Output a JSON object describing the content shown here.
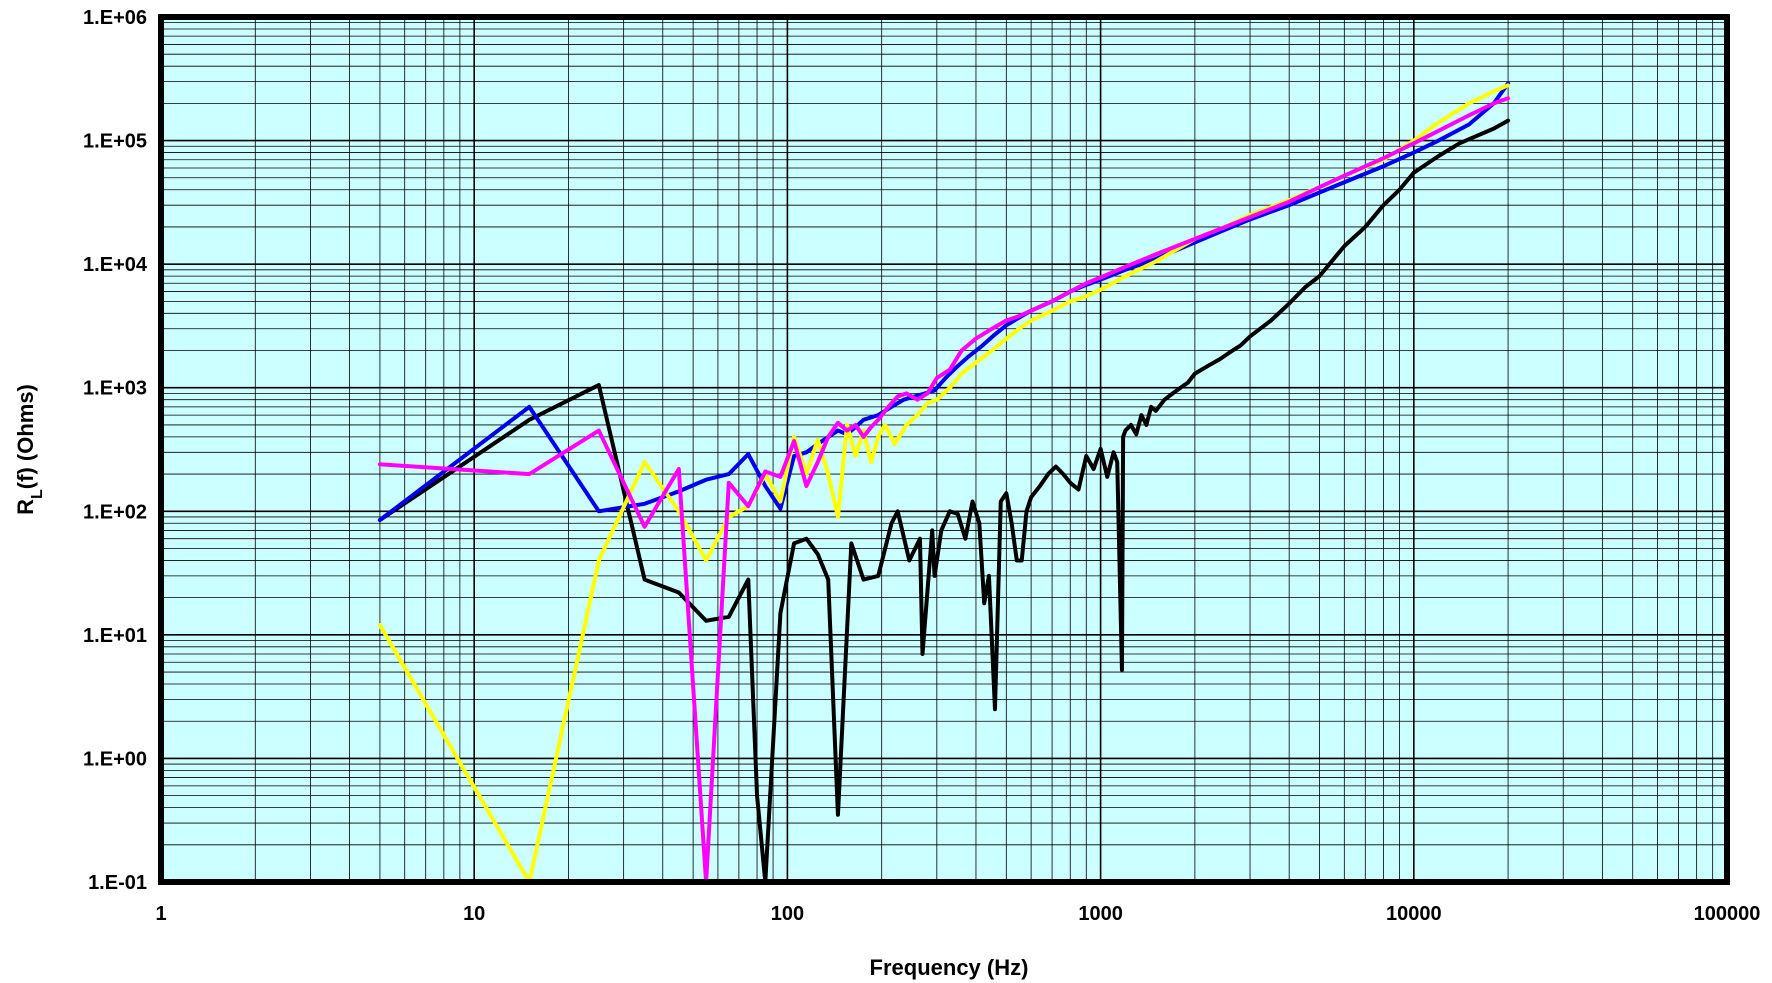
{
  "chart_data": {
    "type": "line",
    "xscale": "log",
    "yscale": "log",
    "xlim": [
      1,
      100000
    ],
    "ylim": [
      0.1,
      1000000
    ],
    "x_ticks": [
      {
        "value": 1,
        "label": "1"
      },
      {
        "value": 10,
        "label": "10"
      },
      {
        "value": 100,
        "label": "100"
      },
      {
        "value": 1000,
        "label": "1000"
      },
      {
        "value": 10000,
        "label": "10000"
      },
      {
        "value": 100000,
        "label": "100000"
      }
    ],
    "y_ticks": [
      {
        "value": 0.1,
        "label": "1.E-01"
      },
      {
        "value": 1,
        "label": "1.E+00"
      },
      {
        "value": 10,
        "label": "1.E+01"
      },
      {
        "value": 100,
        "label": "1.E+02"
      },
      {
        "value": 1000,
        "label": "1.E+03"
      },
      {
        "value": 10000,
        "label": "1.E+04"
      },
      {
        "value": 100000,
        "label": "1.E+05"
      },
      {
        "value": 1000000,
        "label": "1.E+06"
      }
    ],
    "xlabel": "Frequency (Hz)",
    "ylabel_main": "R",
    "ylabel_sub": "L",
    "ylabel_rest": "(f) (Ohms)",
    "grid": true,
    "plot_background": "#ccffff",
    "series": [
      {
        "color": "#000000",
        "x": [
          5,
          15,
          25,
          35,
          45,
          55,
          65,
          75,
          80,
          85,
          95,
          105,
          115,
          125,
          135,
          145,
          160,
          175,
          195,
          215,
          225,
          245,
          265,
          270,
          290,
          295,
          310,
          330,
          350,
          370,
          390,
          410,
          425,
          440,
          460,
          480,
          500,
          520,
          540,
          560,
          580,
          600,
          640,
          680,
          720,
          760,
          800,
          850,
          900,
          950,
          1000,
          1050,
          1100,
          1130,
          1170,
          1180,
          1200,
          1250,
          1300,
          1350,
          1400,
          1450,
          1500,
          1600,
          1700,
          1800,
          1900,
          2000,
          2200,
          2400,
          2600,
          2800,
          3000,
          3500,
          4000,
          4500,
          5000,
          6000,
          7000,
          8000,
          9000,
          10000,
          12000,
          14000,
          16000,
          18000,
          20000
        ],
        "y": [
          85,
          550,
          1050,
          28,
          22,
          13,
          14,
          28,
          0.5,
          0.1,
          15,
          55,
          60,
          45,
          28,
          0.35,
          55,
          28,
          30,
          80,
          100,
          40,
          60,
          7,
          70,
          30,
          70,
          100,
          95,
          60,
          120,
          80,
          18,
          30,
          2.5,
          120,
          140,
          80,
          40,
          40,
          100,
          130,
          160,
          200,
          230,
          200,
          170,
          150,
          280,
          220,
          320,
          190,
          300,
          250,
          5.2,
          400,
          450,
          500,
          420,
          600,
          500,
          700,
          650,
          800,
          900,
          1000,
          1100,
          1300,
          1500,
          1700,
          1950,
          2200,
          2600,
          3500,
          4800,
          6500,
          8000,
          14000,
          20000,
          30000,
          40000,
          55000,
          75000,
          95000,
          110000,
          125000,
          145000
        ]
      },
      {
        "color": "#0000ee",
        "x": [
          5,
          15,
          25,
          35,
          45,
          55,
          65,
          75,
          85,
          95,
          105,
          115,
          125,
          135,
          145,
          155,
          165,
          175,
          195,
          215,
          235,
          255,
          275,
          295,
          320,
          350,
          380,
          420,
          460,
          500,
          550,
          600,
          700,
          800,
          900,
          1000,
          1200,
          1500,
          2000,
          2500,
          3000,
          4000,
          5000,
          6000,
          8000,
          10000,
          12000,
          15000,
          18000,
          20000
        ],
        "y": [
          85,
          700,
          100,
          115,
          145,
          180,
          200,
          290,
          160,
          105,
          280,
          300,
          350,
          400,
          450,
          420,
          480,
          550,
          600,
          700,
          800,
          850,
          900,
          950,
          1200,
          1500,
          1800,
          2200,
          2700,
          3200,
          3700,
          4200,
          5000,
          6000,
          6800,
          7500,
          9000,
          11000,
          15000,
          19000,
          23000,
          30000,
          38000,
          46000,
          62000,
          80000,
          100000,
          135000,
          200000,
          290000
        ]
      },
      {
        "color": "#ffff00",
        "x": [
          5,
          15,
          25,
          35,
          45,
          55,
          65,
          75,
          85,
          95,
          105,
          115,
          125,
          135,
          145,
          155,
          165,
          175,
          185,
          195,
          205,
          220,
          240,
          260,
          280,
          300,
          330,
          360,
          400,
          450,
          500,
          550,
          600,
          700,
          800,
          900,
          1000,
          1200,
          1500,
          2000,
          2500,
          3000,
          4000,
          5000,
          6000,
          8000,
          10000,
          12000,
          15000,
          18000,
          20000
        ],
        "y": [
          12,
          0.1,
          40,
          250,
          100,
          40,
          90,
          110,
          200,
          120,
          400,
          200,
          380,
          200,
          90,
          500,
          280,
          450,
          250,
          400,
          500,
          350,
          500,
          600,
          750,
          800,
          1000,
          1300,
          1600,
          2000,
          2500,
          3000,
          3500,
          4200,
          5000,
          5500,
          6200,
          8000,
          10500,
          16000,
          20000,
          25000,
          33000,
          42000,
          52000,
          70000,
          100000,
          140000,
          200000,
          250000,
          280000
        ]
      },
      {
        "color": "#ff00ff",
        "x": [
          5,
          15,
          25,
          35,
          45,
          55,
          65,
          75,
          85,
          95,
          105,
          115,
          125,
          135,
          145,
          155,
          165,
          175,
          185,
          195,
          210,
          225,
          240,
          260,
          280,
          300,
          330,
          360,
          400,
          450,
          500,
          550,
          600,
          700,
          800,
          900,
          1000,
          1200,
          1500,
          2000,
          2500,
          3000,
          4000,
          5000,
          6000,
          8000,
          10000,
          12000,
          15000,
          18000,
          20000
        ],
        "y": [
          240,
          200,
          450,
          75,
          220,
          0.1,
          170,
          110,
          210,
          190,
          370,
          160,
          250,
          400,
          520,
          450,
          500,
          400,
          480,
          550,
          700,
          850,
          900,
          800,
          900,
          1200,
          1400,
          2000,
          2500,
          3000,
          3500,
          3800,
          4200,
          5000,
          6000,
          7000,
          7800,
          9500,
          12000,
          16000,
          20000,
          24000,
          32000,
          42000,
          52000,
          72000,
          95000,
          120000,
          160000,
          200000,
          220000
        ]
      }
    ]
  }
}
